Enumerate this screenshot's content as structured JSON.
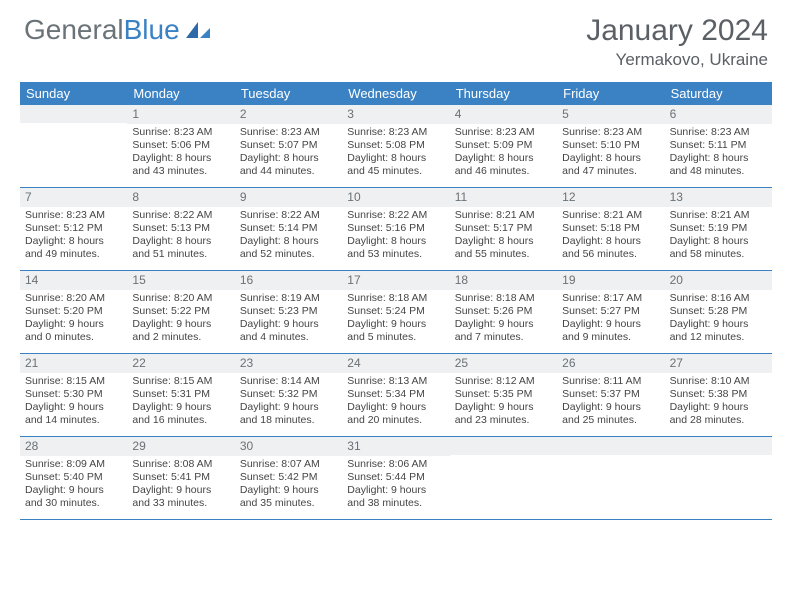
{
  "logo": {
    "text1": "General",
    "text2": "Blue"
  },
  "title": "January 2024",
  "location": "Yermakovo, Ukraine",
  "daynames": [
    "Sunday",
    "Monday",
    "Tuesday",
    "Wednesday",
    "Thursday",
    "Friday",
    "Saturday"
  ],
  "colors": {
    "header_bg": "#3b82c4",
    "header_text": "#ffffff",
    "daynum_bg": "#eef0f2",
    "border": "#3b82c4",
    "body_text": "#454545",
    "title_text": "#5a6066"
  },
  "weeks": [
    [
      {
        "n": "",
        "lines": []
      },
      {
        "n": "1",
        "lines": [
          "Sunrise: 8:23 AM",
          "Sunset: 5:06 PM",
          "Daylight: 8 hours",
          "and 43 minutes."
        ]
      },
      {
        "n": "2",
        "lines": [
          "Sunrise: 8:23 AM",
          "Sunset: 5:07 PM",
          "Daylight: 8 hours",
          "and 44 minutes."
        ]
      },
      {
        "n": "3",
        "lines": [
          "Sunrise: 8:23 AM",
          "Sunset: 5:08 PM",
          "Daylight: 8 hours",
          "and 45 minutes."
        ]
      },
      {
        "n": "4",
        "lines": [
          "Sunrise: 8:23 AM",
          "Sunset: 5:09 PM",
          "Daylight: 8 hours",
          "and 46 minutes."
        ]
      },
      {
        "n": "5",
        "lines": [
          "Sunrise: 8:23 AM",
          "Sunset: 5:10 PM",
          "Daylight: 8 hours",
          "and 47 minutes."
        ]
      },
      {
        "n": "6",
        "lines": [
          "Sunrise: 8:23 AM",
          "Sunset: 5:11 PM",
          "Daylight: 8 hours",
          "and 48 minutes."
        ]
      }
    ],
    [
      {
        "n": "7",
        "lines": [
          "Sunrise: 8:23 AM",
          "Sunset: 5:12 PM",
          "Daylight: 8 hours",
          "and 49 minutes."
        ]
      },
      {
        "n": "8",
        "lines": [
          "Sunrise: 8:22 AM",
          "Sunset: 5:13 PM",
          "Daylight: 8 hours",
          "and 51 minutes."
        ]
      },
      {
        "n": "9",
        "lines": [
          "Sunrise: 8:22 AM",
          "Sunset: 5:14 PM",
          "Daylight: 8 hours",
          "and 52 minutes."
        ]
      },
      {
        "n": "10",
        "lines": [
          "Sunrise: 8:22 AM",
          "Sunset: 5:16 PM",
          "Daylight: 8 hours",
          "and 53 minutes."
        ]
      },
      {
        "n": "11",
        "lines": [
          "Sunrise: 8:21 AM",
          "Sunset: 5:17 PM",
          "Daylight: 8 hours",
          "and 55 minutes."
        ]
      },
      {
        "n": "12",
        "lines": [
          "Sunrise: 8:21 AM",
          "Sunset: 5:18 PM",
          "Daylight: 8 hours",
          "and 56 minutes."
        ]
      },
      {
        "n": "13",
        "lines": [
          "Sunrise: 8:21 AM",
          "Sunset: 5:19 PM",
          "Daylight: 8 hours",
          "and 58 minutes."
        ]
      }
    ],
    [
      {
        "n": "14",
        "lines": [
          "Sunrise: 8:20 AM",
          "Sunset: 5:20 PM",
          "Daylight: 9 hours",
          "and 0 minutes."
        ]
      },
      {
        "n": "15",
        "lines": [
          "Sunrise: 8:20 AM",
          "Sunset: 5:22 PM",
          "Daylight: 9 hours",
          "and 2 minutes."
        ]
      },
      {
        "n": "16",
        "lines": [
          "Sunrise: 8:19 AM",
          "Sunset: 5:23 PM",
          "Daylight: 9 hours",
          "and 4 minutes."
        ]
      },
      {
        "n": "17",
        "lines": [
          "Sunrise: 8:18 AM",
          "Sunset: 5:24 PM",
          "Daylight: 9 hours",
          "and 5 minutes."
        ]
      },
      {
        "n": "18",
        "lines": [
          "Sunrise: 8:18 AM",
          "Sunset: 5:26 PM",
          "Daylight: 9 hours",
          "and 7 minutes."
        ]
      },
      {
        "n": "19",
        "lines": [
          "Sunrise: 8:17 AM",
          "Sunset: 5:27 PM",
          "Daylight: 9 hours",
          "and 9 minutes."
        ]
      },
      {
        "n": "20",
        "lines": [
          "Sunrise: 8:16 AM",
          "Sunset: 5:28 PM",
          "Daylight: 9 hours",
          "and 12 minutes."
        ]
      }
    ],
    [
      {
        "n": "21",
        "lines": [
          "Sunrise: 8:15 AM",
          "Sunset: 5:30 PM",
          "Daylight: 9 hours",
          "and 14 minutes."
        ]
      },
      {
        "n": "22",
        "lines": [
          "Sunrise: 8:15 AM",
          "Sunset: 5:31 PM",
          "Daylight: 9 hours",
          "and 16 minutes."
        ]
      },
      {
        "n": "23",
        "lines": [
          "Sunrise: 8:14 AM",
          "Sunset: 5:32 PM",
          "Daylight: 9 hours",
          "and 18 minutes."
        ]
      },
      {
        "n": "24",
        "lines": [
          "Sunrise: 8:13 AM",
          "Sunset: 5:34 PM",
          "Daylight: 9 hours",
          "and 20 minutes."
        ]
      },
      {
        "n": "25",
        "lines": [
          "Sunrise: 8:12 AM",
          "Sunset: 5:35 PM",
          "Daylight: 9 hours",
          "and 23 minutes."
        ]
      },
      {
        "n": "26",
        "lines": [
          "Sunrise: 8:11 AM",
          "Sunset: 5:37 PM",
          "Daylight: 9 hours",
          "and 25 minutes."
        ]
      },
      {
        "n": "27",
        "lines": [
          "Sunrise: 8:10 AM",
          "Sunset: 5:38 PM",
          "Daylight: 9 hours",
          "and 28 minutes."
        ]
      }
    ],
    [
      {
        "n": "28",
        "lines": [
          "Sunrise: 8:09 AM",
          "Sunset: 5:40 PM",
          "Daylight: 9 hours",
          "and 30 minutes."
        ]
      },
      {
        "n": "29",
        "lines": [
          "Sunrise: 8:08 AM",
          "Sunset: 5:41 PM",
          "Daylight: 9 hours",
          "and 33 minutes."
        ]
      },
      {
        "n": "30",
        "lines": [
          "Sunrise: 8:07 AM",
          "Sunset: 5:42 PM",
          "Daylight: 9 hours",
          "and 35 minutes."
        ]
      },
      {
        "n": "31",
        "lines": [
          "Sunrise: 8:06 AM",
          "Sunset: 5:44 PM",
          "Daylight: 9 hours",
          "and 38 minutes."
        ]
      },
      {
        "n": "",
        "lines": []
      },
      {
        "n": "",
        "lines": []
      },
      {
        "n": "",
        "lines": []
      }
    ]
  ]
}
